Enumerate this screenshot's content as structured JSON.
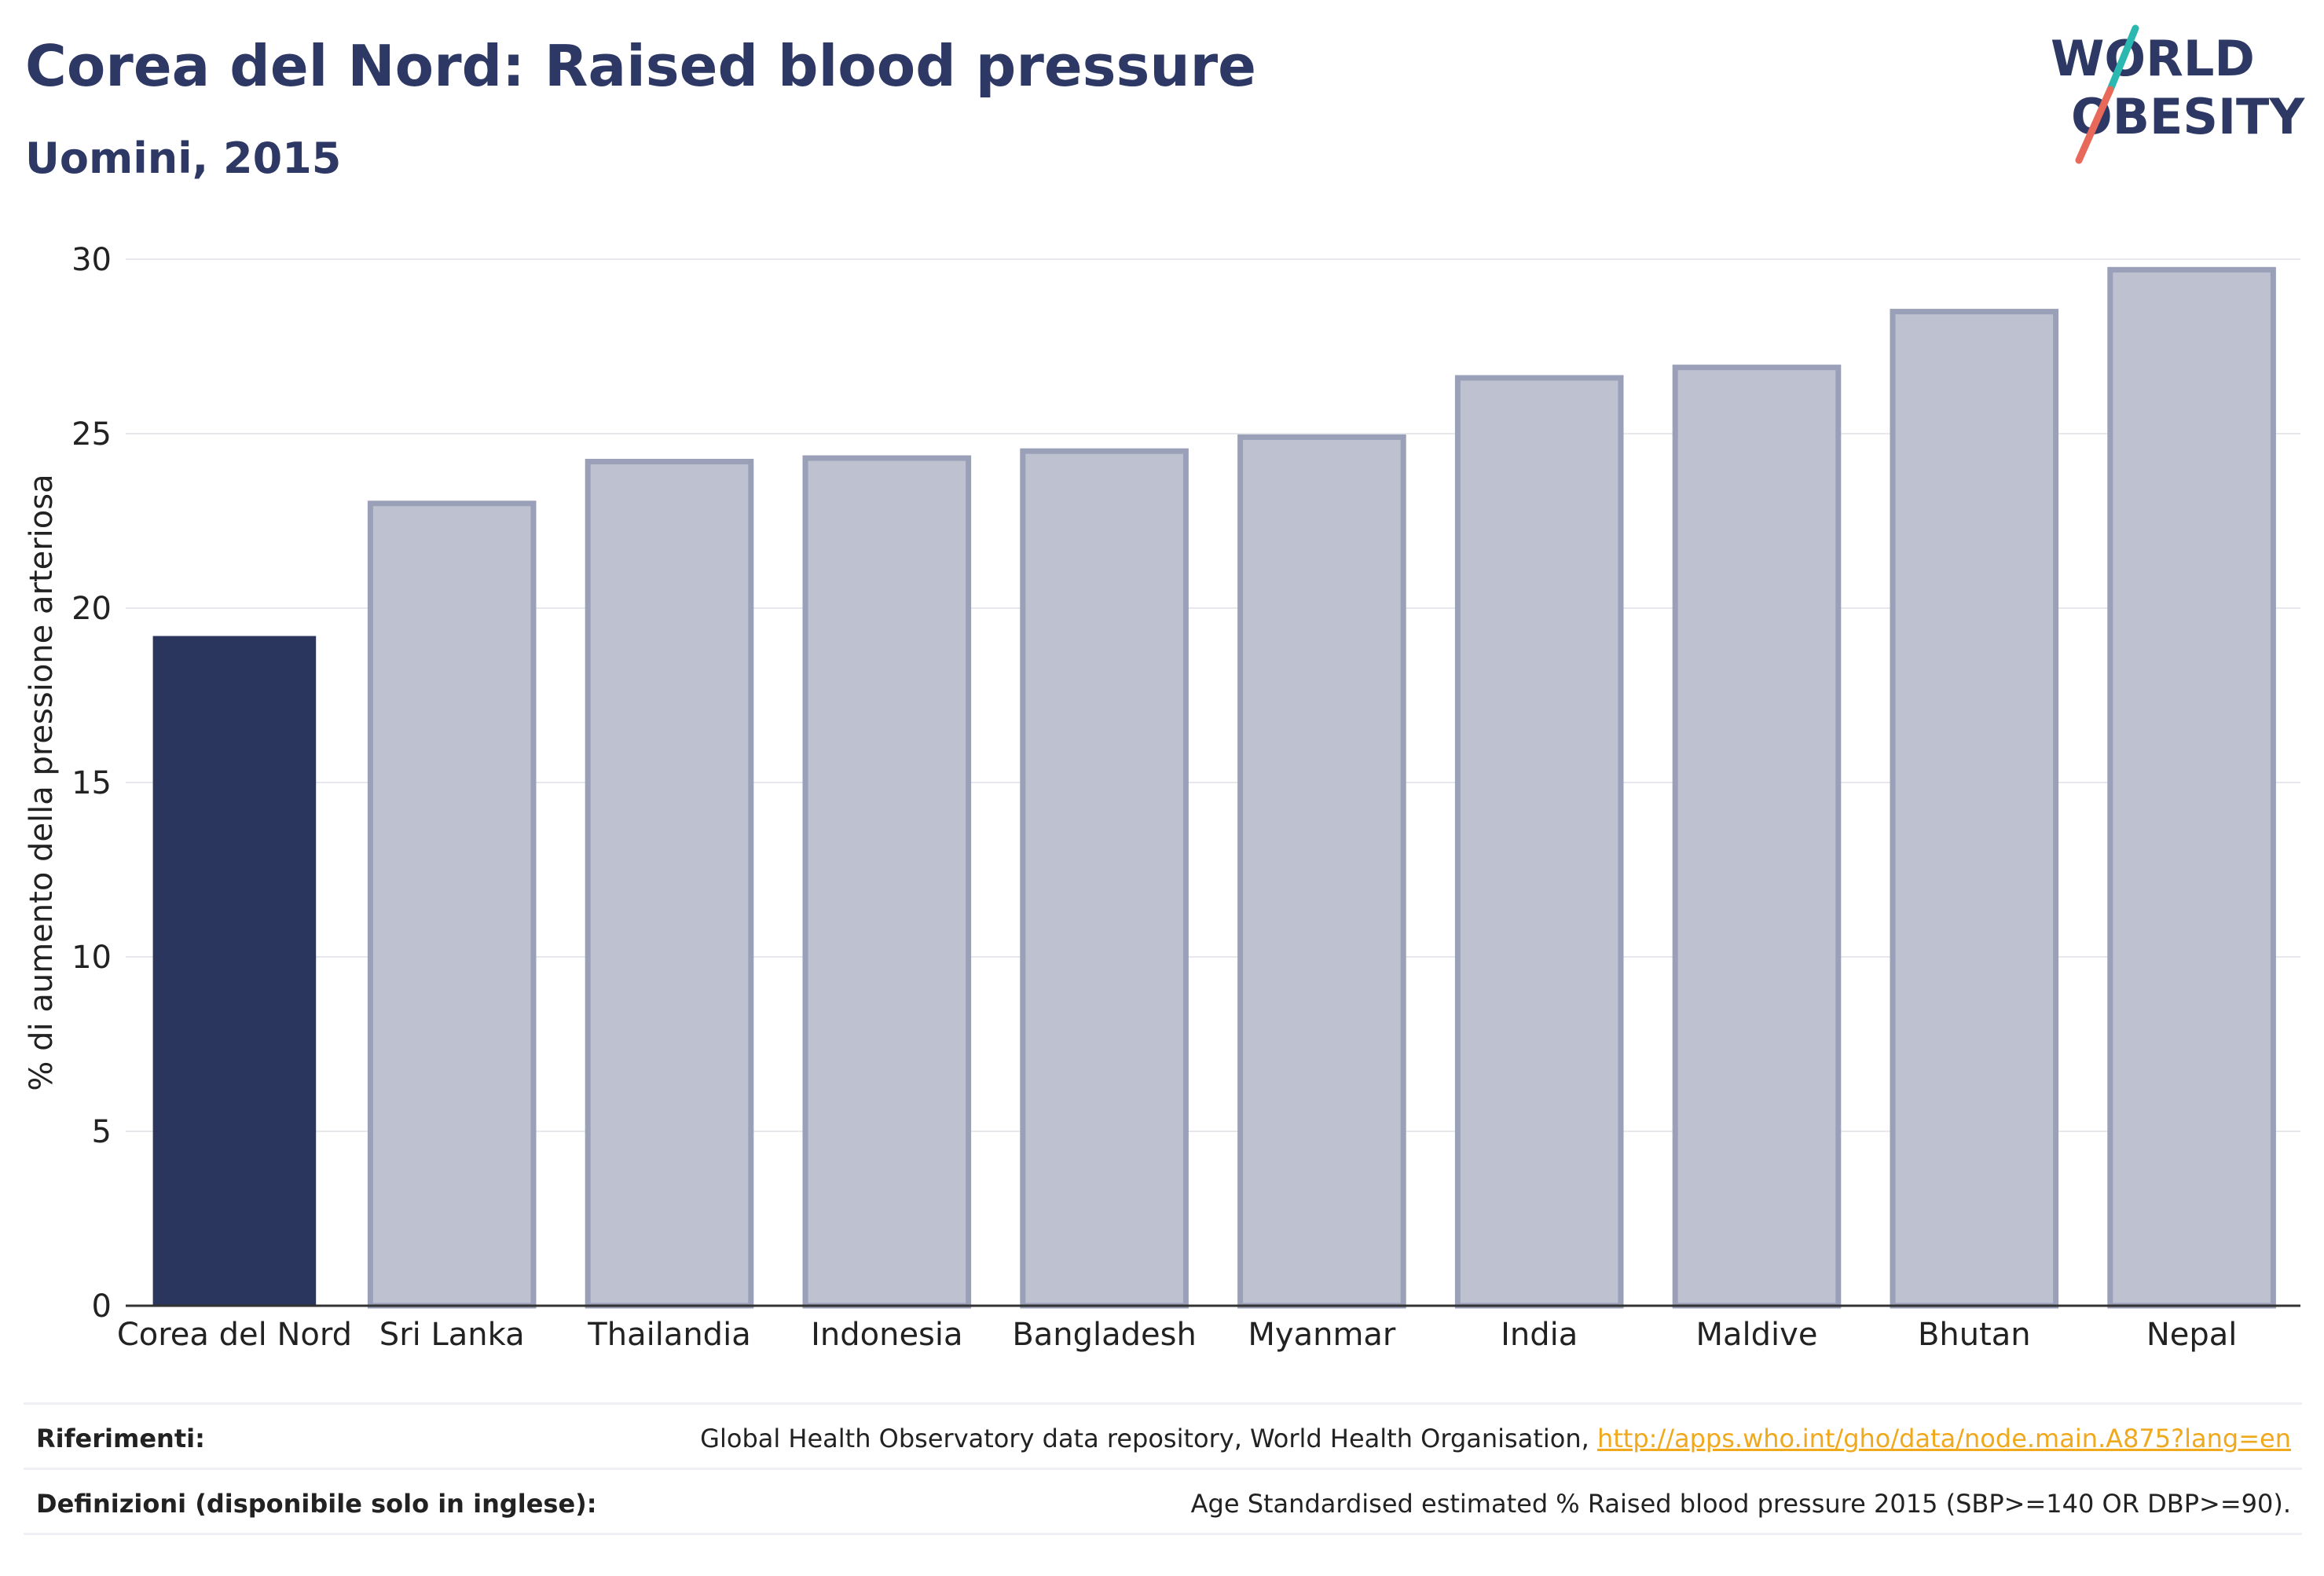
{
  "header": {
    "title": "Corea del Nord: Raised blood pressure",
    "subtitle": "Uomini, 2015"
  },
  "logo": {
    "line1": "WORLD",
    "line2": "OBESITY"
  },
  "colors": {
    "highlight": "#2b365f",
    "others_fill": "#bec1cf",
    "others_stroke": "#9aa0b8",
    "text": "#2d3865",
    "link": "#f0a81c",
    "logo_teal": "#2bb8b0",
    "logo_coral": "#e8695a"
  },
  "chart_data": {
    "type": "bar",
    "categories": [
      "Corea del Nord",
      "Sri Lanka",
      "Thailandia",
      "Indonesia",
      "Bangladesh",
      "Myanmar",
      "India",
      "Maldive",
      "Bhutan",
      "Nepal"
    ],
    "values": [
      19.2,
      23.0,
      24.2,
      24.3,
      24.5,
      24.9,
      26.6,
      26.9,
      28.5,
      29.7
    ],
    "highlight_index": 0,
    "ylabel": "% di aumento della pressione arteriosa",
    "ylim": [
      0,
      30
    ],
    "yticks": [
      0,
      5,
      10,
      15,
      20,
      25,
      30
    ],
    "grid": true
  },
  "footer": {
    "references_label": "Riferimenti:",
    "references_text": "Global Health Observatory data repository, World Health Organisation, ",
    "references_link": "http://apps.who.int/gho/data/node.main.A875?lang=en",
    "definitions_label": "Definizioni (disponibile solo in inglese):",
    "definitions_text": "Age Standardised estimated % Raised blood pressure 2015 (SBP>=140 OR DBP>=90)."
  }
}
